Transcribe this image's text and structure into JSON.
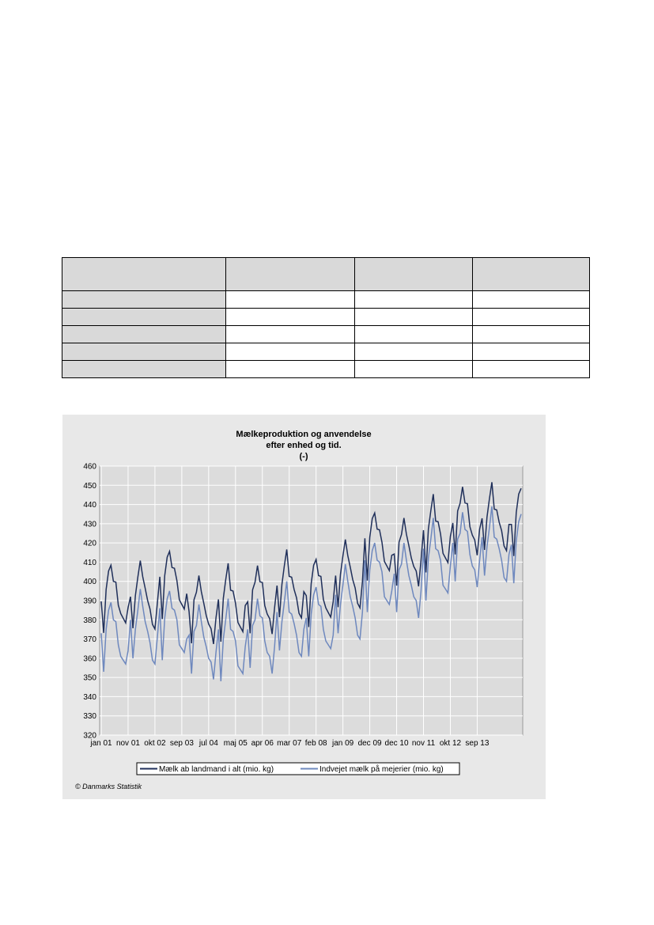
{
  "table": {
    "header": [
      "",
      "",
      "",
      ""
    ],
    "rows": [
      [
        "",
        "",
        "",
        ""
      ],
      [
        "",
        "",
        "",
        ""
      ],
      [
        "",
        "",
        "",
        ""
      ],
      [
        "",
        "",
        "",
        ""
      ],
      [
        "",
        "",
        "",
        ""
      ]
    ]
  },
  "chart_data": {
    "type": "line",
    "title": [
      "Mælkeproduktion og anvendelse",
      "efter enhed og tid.",
      "(-)"
    ],
    "xlabel": "",
    "ylabel": "",
    "ylim": [
      320,
      460
    ],
    "y_ticks": [
      320,
      330,
      340,
      350,
      360,
      370,
      380,
      390,
      400,
      410,
      420,
      430,
      440,
      450,
      460
    ],
    "x_tick_labels": [
      "jan 01",
      "nov 01",
      "okt 02",
      "sep 03",
      "jul 04",
      "maj 05",
      "apr 06",
      "mar 07",
      "feb 08",
      "jan 09",
      "dec 09",
      "dec 10",
      "nov 11",
      "okt 12",
      "sep 13"
    ],
    "grid": true,
    "legend_position": "bottom",
    "x_start": "2001-01",
    "annual_peaks": {
      "years": [
        2001,
        2002,
        2003,
        2004,
        2005,
        2006,
        2007,
        2008,
        2009,
        2010,
        2011,
        2012,
        2013
      ],
      "series1_peak": [
        410,
        410,
        418,
        403,
        407,
        409,
        415,
        413,
        421,
        438,
        433,
        443,
        450
      ],
      "series2_peak": [
        398,
        402,
        405,
        395,
        395,
        399,
        405,
        406,
        415,
        430,
        427,
        437,
        444
      ]
    },
    "series": [
      {
        "name": "Mælk ab landmand i alt (mio. kg)",
        "color": "#1f2f5a"
      },
      {
        "name": "Indvejet mælk på mejerier (mio. kg)",
        "color": "#6e88be"
      }
    ],
    "copyright": "© Danmarks Statistik"
  }
}
